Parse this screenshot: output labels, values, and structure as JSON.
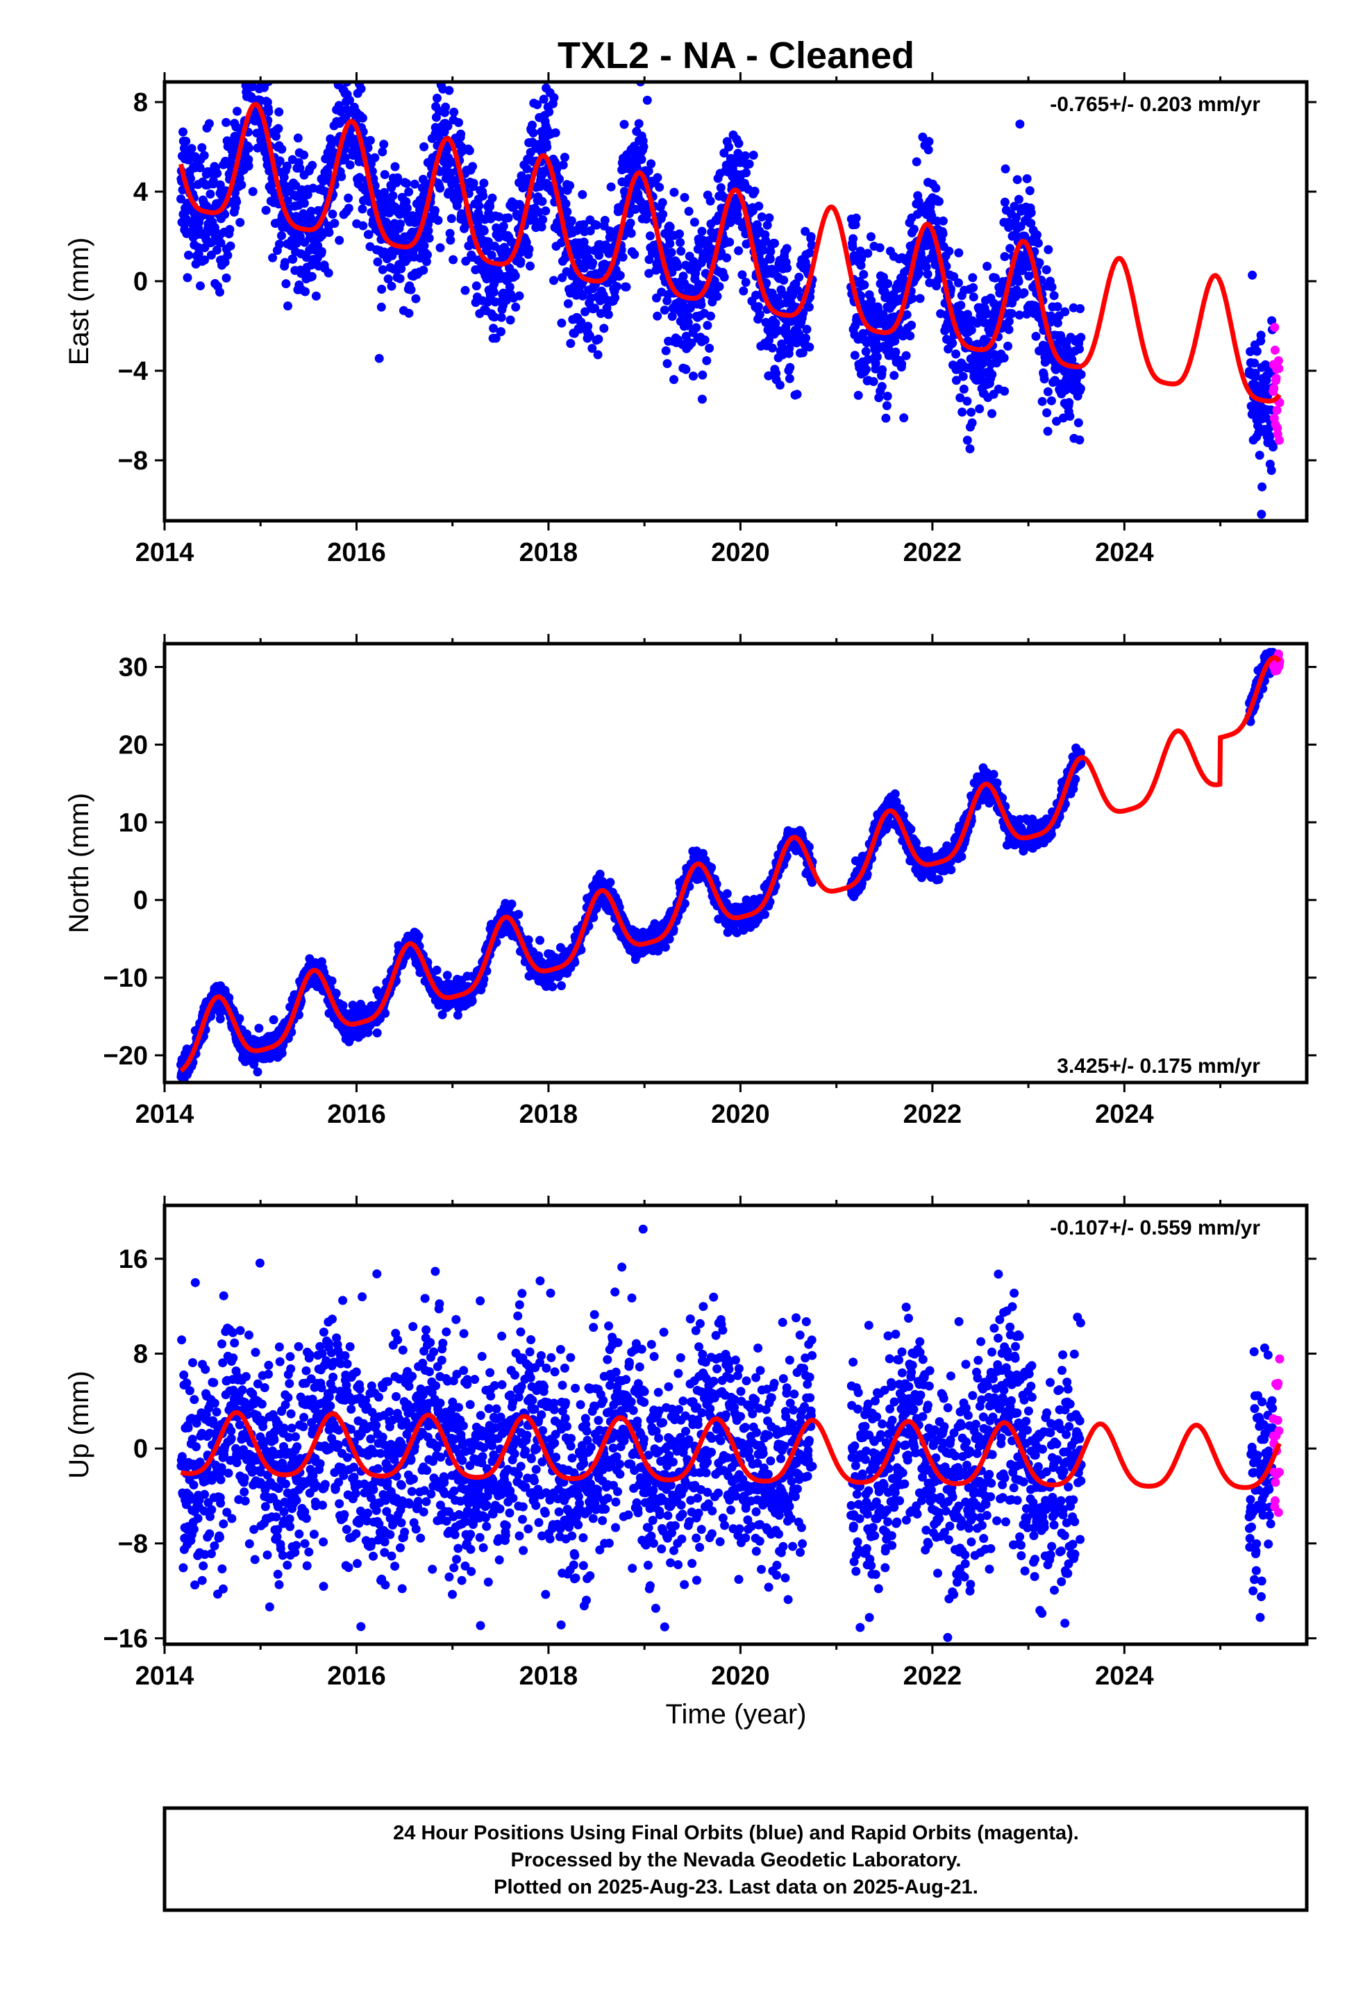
{
  "title": "TXL2  - NA - Cleaned",
  "xlabel": "Time (year)",
  "colors": {
    "final": "#0000ff",
    "rapid": "#ff00ff",
    "model": "#ff0000"
  },
  "footer": [
    "24 Hour Positions Using Final Orbits (blue) and Rapid Orbits (magenta).",
    "Processed by the Nevada Geodetic Laboratory.",
    "Plotted on 2025-Aug-23. Last data on 2025-Aug-21."
  ],
  "chart_data": [
    {
      "type": "scatter",
      "ylabel": "East (mm)",
      "rate_label": "-0.765+/- 0.203 mm/yr",
      "xlim": [
        2014.0,
        2025.9
      ],
      "ylim": [
        -10.7,
        8.9
      ],
      "xticks": [
        2014,
        2016,
        2018,
        2020,
        2022,
        2024
      ],
      "xtick_labels": [
        "2014",
        "2016",
        "2018",
        "2020",
        "2022",
        "2024"
      ],
      "yticks": [
        8,
        4,
        0,
        -4,
        -8
      ],
      "ytick_labels": [
        "8",
        "4",
        "0",
        "−4",
        "−8"
      ],
      "model": {
        "offset": 5.3,
        "rate": -0.765,
        "annual_amp": 2.6,
        "annual_phase_peak": 0.95,
        "semi_amp": 0.6
      },
      "final_obs": {
        "start": 2014.17,
        "end": 2023.55,
        "gaps": [
          [
            2020.75,
            2021.15
          ]
        ],
        "resume": 2025.3,
        "resume_end": 2025.55,
        "scatter": 1.5
      },
      "rapid_obs": {
        "start": 2025.55,
        "end": 2025.62,
        "mean": -4.0,
        "scatter": 2.6
      }
    },
    {
      "type": "scatter",
      "ylabel": "North (mm)",
      "rate_label": "3.425+/- 0.175 mm/yr",
      "xlim": [
        2014.0,
        2025.9
      ],
      "ylim": [
        -23.5,
        33.0
      ],
      "xticks": [
        2014,
        2016,
        2018,
        2020,
        2022,
        2024
      ],
      "xtick_labels": [
        "2014",
        "2016",
        "2018",
        "2020",
        "2022",
        "2024"
      ],
      "yticks": [
        30,
        20,
        10,
        0,
        -10,
        -20
      ],
      "ytick_labels": [
        "30",
        "20",
        "10",
        "0",
        "−10",
        "−20"
      ],
      "model": {
        "offset": -19.0,
        "rate": 3.425,
        "annual_amp": 4.2,
        "annual_phase_peak": 0.55,
        "semi_amp": 1.0,
        "jump": {
          "at": 2025.0,
          "size": 6.0
        }
      },
      "final_obs": {
        "start": 2014.17,
        "end": 2023.55,
        "gaps": [
          [
            2020.75,
            2021.15
          ]
        ],
        "resume": 2025.3,
        "resume_end": 2025.55,
        "scatter": 0.9
      },
      "rapid_obs": {
        "start": 2025.55,
        "end": 2025.62,
        "mean": 30.0,
        "scatter": 1.2
      }
    },
    {
      "type": "scatter",
      "ylabel": "Up (mm)",
      "rate_label": "-0.107+/- 0.559 mm/yr",
      "xlim": [
        2014.0,
        2025.9
      ],
      "ylim": [
        -16.5,
        20.5
      ],
      "xticks": [
        2014,
        2016,
        2018,
        2020,
        2022,
        2024
      ],
      "xtick_labels": [
        "2014",
        "2016",
        "2018",
        "2020",
        "2022",
        "2024"
      ],
      "yticks": [
        16,
        8,
        0,
        -8,
        -16
      ],
      "ytick_labels": [
        "16",
        "8",
        "0",
        "−8",
        "−16"
      ],
      "model": {
        "offset": 0.0,
        "rate": -0.107,
        "annual_amp": 2.6,
        "annual_phase_peak": 0.75,
        "semi_amp": 0.5
      },
      "final_obs": {
        "start": 2014.17,
        "end": 2023.55,
        "gaps": [
          [
            2020.75,
            2021.15
          ]
        ],
        "resume": 2025.3,
        "resume_end": 2025.55,
        "scatter": 4.5
      },
      "rapid_obs": {
        "start": 2025.55,
        "end": 2025.62,
        "mean": 2.0,
        "scatter": 8.0
      }
    }
  ]
}
